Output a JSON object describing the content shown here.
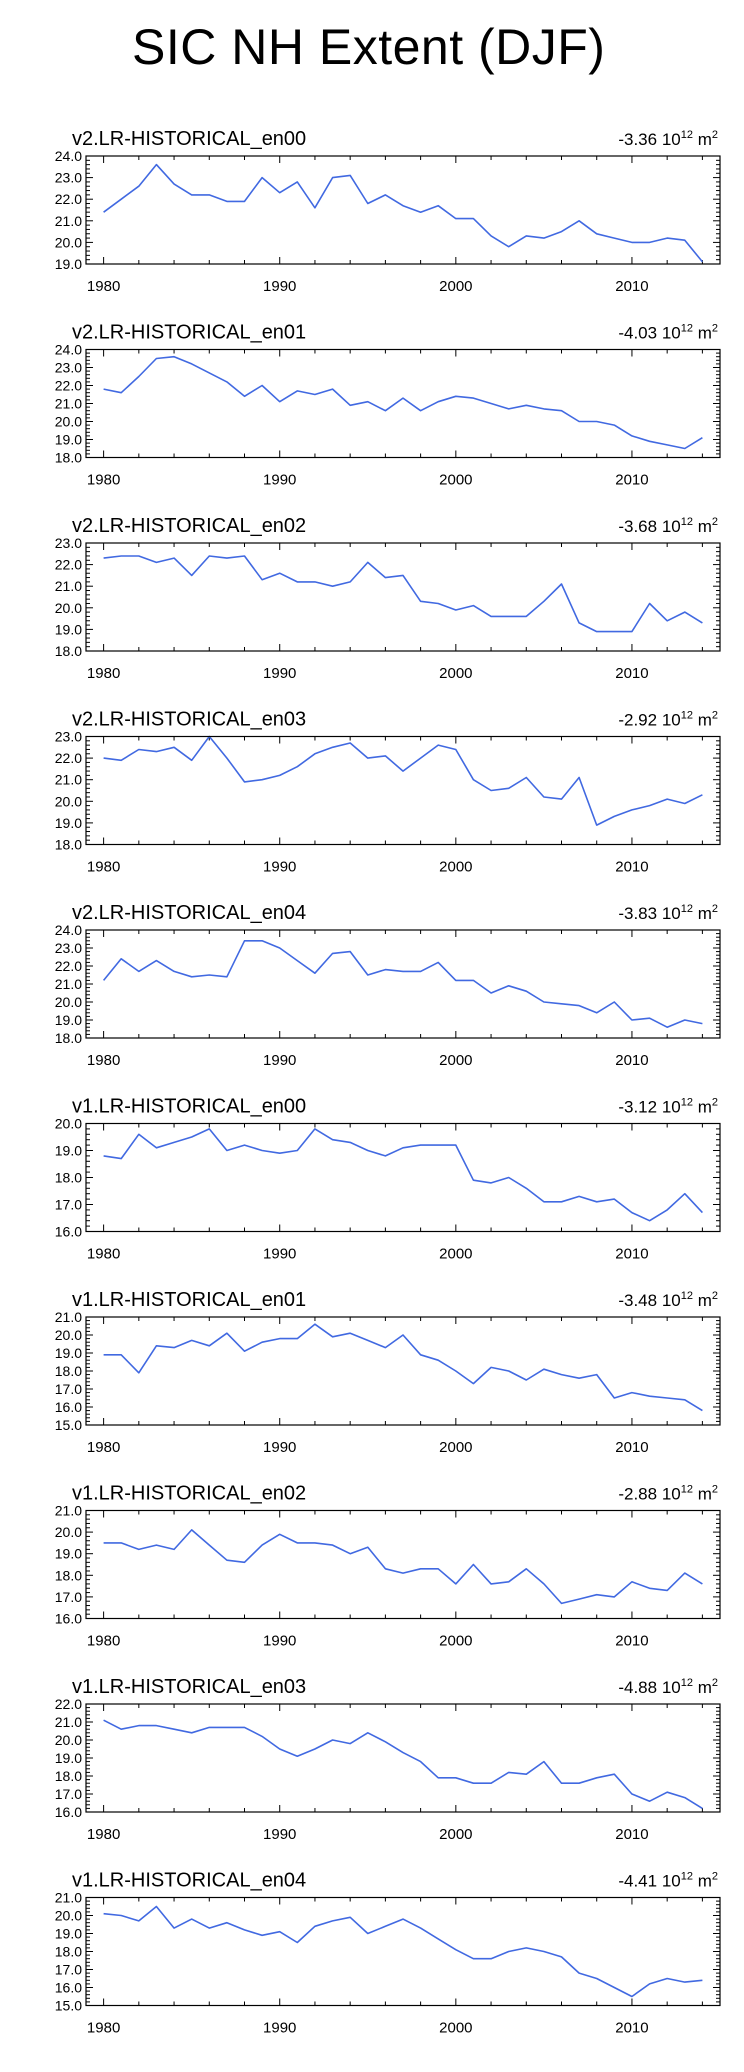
{
  "figure": {
    "title": "SIC NH Extent (DJF)"
  },
  "chart_data": [
    {
      "type": "line",
      "title": "v2.LR-HISTORICAL_en00",
      "trend": "-3.36",
      "trend_unit_base": "10",
      "trend_unit_exp": "12",
      "trend_unit": "m",
      "trend_unit_exp2": "2",
      "ylim": [
        19.0,
        24.0
      ],
      "yticks": [
        "24.0",
        "23.0",
        "22.0",
        "21.0",
        "20.0",
        "19.0"
      ],
      "xlim": [
        1979,
        2015
      ],
      "xticks": [
        "1980",
        "1990",
        "2000",
        "2010"
      ],
      "color": "#4169e1",
      "x": [
        1980,
        1981,
        1982,
        1983,
        1984,
        1985,
        1986,
        1987,
        1988,
        1989,
        1990,
        1991,
        1992,
        1993,
        1994,
        1995,
        1996,
        1997,
        1998,
        1999,
        2000,
        2001,
        2002,
        2003,
        2004,
        2005,
        2006,
        2007,
        2008,
        2009,
        2010,
        2011,
        2012,
        2013,
        2014
      ],
      "values": [
        21.4,
        22.0,
        22.6,
        23.6,
        22.7,
        22.2,
        22.2,
        21.9,
        21.9,
        23.0,
        22.3,
        22.8,
        21.6,
        23.0,
        23.1,
        21.8,
        22.2,
        21.7,
        21.4,
        21.7,
        21.1,
        21.1,
        20.3,
        19.8,
        20.3,
        20.2,
        20.5,
        21.0,
        20.4,
        20.2,
        20.0,
        20.0,
        20.2,
        20.1,
        19.1
      ]
    },
    {
      "type": "line",
      "title": "v2.LR-HISTORICAL_en01",
      "trend": "-4.03",
      "trend_unit_base": "10",
      "trend_unit_exp": "12",
      "trend_unit": "m",
      "trend_unit_exp2": "2",
      "ylim": [
        18.0,
        24.0
      ],
      "yticks": [
        "24.0",
        "23.0",
        "22.0",
        "21.0",
        "20.0",
        "19.0",
        "18.0"
      ],
      "xlim": [
        1979,
        2015
      ],
      "xticks": [
        "1980",
        "1990",
        "2000",
        "2010"
      ],
      "color": "#4169e1",
      "x": [
        1980,
        1981,
        1982,
        1983,
        1984,
        1985,
        1986,
        1987,
        1988,
        1989,
        1990,
        1991,
        1992,
        1993,
        1994,
        1995,
        1996,
        1997,
        1998,
        1999,
        2000,
        2001,
        2002,
        2003,
        2004,
        2005,
        2006,
        2007,
        2008,
        2009,
        2010,
        2011,
        2012,
        2013,
        2014
      ],
      "values": [
        21.8,
        21.6,
        22.5,
        23.5,
        23.6,
        23.2,
        22.7,
        22.2,
        21.4,
        22.0,
        21.1,
        21.7,
        21.5,
        21.8,
        20.9,
        21.1,
        20.6,
        21.3,
        20.6,
        21.1,
        21.4,
        21.3,
        21.0,
        20.7,
        20.9,
        20.7,
        20.6,
        20.0,
        20.0,
        19.8,
        19.2,
        18.9,
        18.7,
        18.5,
        19.1
      ]
    },
    {
      "type": "line",
      "title": "v2.LR-HISTORICAL_en02",
      "trend": "-3.68",
      "trend_unit_base": "10",
      "trend_unit_exp": "12",
      "trend_unit": "m",
      "trend_unit_exp2": "2",
      "ylim": [
        18.0,
        23.0
      ],
      "yticks": [
        "23.0",
        "22.0",
        "21.0",
        "20.0",
        "19.0",
        "18.0"
      ],
      "xlim": [
        1979,
        2015
      ],
      "xticks": [
        "1980",
        "1990",
        "2000",
        "2010"
      ],
      "color": "#4169e1",
      "x": [
        1980,
        1981,
        1982,
        1983,
        1984,
        1985,
        1986,
        1987,
        1988,
        1989,
        1990,
        1991,
        1992,
        1993,
        1994,
        1995,
        1996,
        1997,
        1998,
        1999,
        2000,
        2001,
        2002,
        2003,
        2004,
        2005,
        2006,
        2007,
        2008,
        2009,
        2010,
        2011,
        2012,
        2013,
        2014
      ],
      "values": [
        22.3,
        22.4,
        22.4,
        22.1,
        22.3,
        21.5,
        22.4,
        22.3,
        22.4,
        21.3,
        21.6,
        21.2,
        21.2,
        21.0,
        21.2,
        22.1,
        21.4,
        21.5,
        20.3,
        20.2,
        19.9,
        20.1,
        19.6,
        19.6,
        19.6,
        20.3,
        21.1,
        19.3,
        18.9,
        18.9,
        18.9,
        20.2,
        19.4,
        19.8,
        19.3
      ]
    },
    {
      "type": "line",
      "title": "v2.LR-HISTORICAL_en03",
      "trend": "-2.92",
      "trend_unit_base": "10",
      "trend_unit_exp": "12",
      "trend_unit": "m",
      "trend_unit_exp2": "2",
      "ylim": [
        18.0,
        23.0
      ],
      "yticks": [
        "23.0",
        "22.0",
        "21.0",
        "20.0",
        "19.0",
        "18.0"
      ],
      "xlim": [
        1979,
        2015
      ],
      "xticks": [
        "1980",
        "1990",
        "2000",
        "2010"
      ],
      "color": "#4169e1",
      "x": [
        1980,
        1981,
        1982,
        1983,
        1984,
        1985,
        1986,
        1987,
        1988,
        1989,
        1990,
        1991,
        1992,
        1993,
        1994,
        1995,
        1996,
        1997,
        1998,
        1999,
        2000,
        2001,
        2002,
        2003,
        2004,
        2005,
        2006,
        2007,
        2008,
        2009,
        2010,
        2011,
        2012,
        2013,
        2014
      ],
      "values": [
        22.0,
        21.9,
        22.4,
        22.3,
        22.5,
        21.9,
        23.0,
        22.0,
        20.9,
        21.0,
        21.2,
        21.6,
        22.2,
        22.5,
        22.7,
        22.0,
        22.1,
        21.4,
        22.0,
        22.6,
        22.4,
        21.0,
        20.5,
        20.6,
        21.1,
        20.2,
        20.1,
        21.1,
        18.9,
        19.3,
        19.6,
        19.8,
        20.1,
        19.9,
        20.3
      ]
    },
    {
      "type": "line",
      "title": "v2.LR-HISTORICAL_en04",
      "trend": "-3.83",
      "trend_unit_base": "10",
      "trend_unit_exp": "12",
      "trend_unit": "m",
      "trend_unit_exp2": "2",
      "ylim": [
        18.0,
        24.0
      ],
      "yticks": [
        "24.0",
        "23.0",
        "22.0",
        "21.0",
        "20.0",
        "19.0",
        "18.0"
      ],
      "xlim": [
        1979,
        2015
      ],
      "xticks": [
        "1980",
        "1990",
        "2000",
        "2010"
      ],
      "color": "#4169e1",
      "x": [
        1980,
        1981,
        1982,
        1983,
        1984,
        1985,
        1986,
        1987,
        1988,
        1989,
        1990,
        1991,
        1992,
        1993,
        1994,
        1995,
        1996,
        1997,
        1998,
        1999,
        2000,
        2001,
        2002,
        2003,
        2004,
        2005,
        2006,
        2007,
        2008,
        2009,
        2010,
        2011,
        2012,
        2013,
        2014
      ],
      "values": [
        21.2,
        22.4,
        21.7,
        22.3,
        21.7,
        21.4,
        21.5,
        21.4,
        23.4,
        23.4,
        23.0,
        22.3,
        21.6,
        22.7,
        22.8,
        21.5,
        21.8,
        21.7,
        21.7,
        22.2,
        21.2,
        21.2,
        20.5,
        20.9,
        20.6,
        20.0,
        19.9,
        19.8,
        19.4,
        20.0,
        19.0,
        19.1,
        18.6,
        19.0,
        18.8
      ]
    },
    {
      "type": "line",
      "title": "v1.LR-HISTORICAL_en00",
      "trend": "-3.12",
      "trend_unit_base": "10",
      "trend_unit_exp": "12",
      "trend_unit": "m",
      "trend_unit_exp2": "2",
      "ylim": [
        16.0,
        20.0
      ],
      "yticks": [
        "20.0",
        "19.0",
        "18.0",
        "17.0",
        "16.0"
      ],
      "xlim": [
        1979,
        2015
      ],
      "xticks": [
        "1980",
        "1990",
        "2000",
        "2010"
      ],
      "color": "#4169e1",
      "x": [
        1980,
        1981,
        1982,
        1983,
        1984,
        1985,
        1986,
        1987,
        1988,
        1989,
        1990,
        1991,
        1992,
        1993,
        1994,
        1995,
        1996,
        1997,
        1998,
        1999,
        2000,
        2001,
        2002,
        2003,
        2004,
        2005,
        2006,
        2007,
        2008,
        2009,
        2010,
        2011,
        2012,
        2013,
        2014
      ],
      "values": [
        18.8,
        18.7,
        19.6,
        19.1,
        19.3,
        19.5,
        19.8,
        19.0,
        19.2,
        19.0,
        18.9,
        19.0,
        19.8,
        19.4,
        19.3,
        19.0,
        18.8,
        19.1,
        19.2,
        19.2,
        19.2,
        17.9,
        17.8,
        18.0,
        17.6,
        17.1,
        17.1,
        17.3,
        17.1,
        17.2,
        16.7,
        16.4,
        16.8,
        17.4,
        16.7
      ]
    },
    {
      "type": "line",
      "title": "v1.LR-HISTORICAL_en01",
      "trend": "-3.48",
      "trend_unit_base": "10",
      "trend_unit_exp": "12",
      "trend_unit": "m",
      "trend_unit_exp2": "2",
      "ylim": [
        15.0,
        21.0
      ],
      "yticks": [
        "21.0",
        "20.0",
        "19.0",
        "18.0",
        "17.0",
        "16.0",
        "15.0"
      ],
      "xlim": [
        1979,
        2015
      ],
      "xticks": [
        "1980",
        "1990",
        "2000",
        "2010"
      ],
      "color": "#4169e1",
      "x": [
        1980,
        1981,
        1982,
        1983,
        1984,
        1985,
        1986,
        1987,
        1988,
        1989,
        1990,
        1991,
        1992,
        1993,
        1994,
        1995,
        1996,
        1997,
        1998,
        1999,
        2000,
        2001,
        2002,
        2003,
        2004,
        2005,
        2006,
        2007,
        2008,
        2009,
        2010,
        2011,
        2012,
        2013,
        2014
      ],
      "values": [
        18.9,
        18.9,
        17.9,
        19.4,
        19.3,
        19.7,
        19.4,
        20.1,
        19.1,
        19.6,
        19.8,
        19.8,
        20.6,
        19.9,
        20.1,
        19.7,
        19.3,
        20.0,
        18.9,
        18.6,
        18.0,
        17.3,
        18.2,
        18.0,
        17.5,
        18.1,
        17.8,
        17.6,
        17.8,
        16.5,
        16.8,
        16.6,
        16.5,
        16.4,
        15.8
      ]
    },
    {
      "type": "line",
      "title": "v1.LR-HISTORICAL_en02",
      "trend": "-2.88",
      "trend_unit_base": "10",
      "trend_unit_exp": "12",
      "trend_unit": "m",
      "trend_unit_exp2": "2",
      "ylim": [
        16.0,
        21.0
      ],
      "yticks": [
        "21.0",
        "20.0",
        "19.0",
        "18.0",
        "17.0",
        "16.0"
      ],
      "xlim": [
        1979,
        2015
      ],
      "xticks": [
        "1980",
        "1990",
        "2000",
        "2010"
      ],
      "color": "#4169e1",
      "x": [
        1980,
        1981,
        1982,
        1983,
        1984,
        1985,
        1986,
        1987,
        1988,
        1989,
        1990,
        1991,
        1992,
        1993,
        1994,
        1995,
        1996,
        1997,
        1998,
        1999,
        2000,
        2001,
        2002,
        2003,
        2004,
        2005,
        2006,
        2007,
        2008,
        2009,
        2010,
        2011,
        2012,
        2013,
        2014
      ],
      "values": [
        19.5,
        19.5,
        19.2,
        19.4,
        19.2,
        20.1,
        19.4,
        18.7,
        18.6,
        19.4,
        19.9,
        19.5,
        19.5,
        19.4,
        19.0,
        19.3,
        18.3,
        18.1,
        18.3,
        18.3,
        17.6,
        18.5,
        17.6,
        17.7,
        18.3,
        17.6,
        16.7,
        16.9,
        17.1,
        17.0,
        17.7,
        17.4,
        17.3,
        18.1,
        17.6
      ]
    },
    {
      "type": "line",
      "title": "v1.LR-HISTORICAL_en03",
      "trend": "-4.88",
      "trend_unit_base": "10",
      "trend_unit_exp": "12",
      "trend_unit": "m",
      "trend_unit_exp2": "2",
      "ylim": [
        16.0,
        22.0
      ],
      "yticks": [
        "22.0",
        "21.0",
        "20.0",
        "19.0",
        "18.0",
        "17.0",
        "16.0"
      ],
      "xlim": [
        1979,
        2015
      ],
      "xticks": [
        "1980",
        "1990",
        "2000",
        "2010"
      ],
      "color": "#4169e1",
      "x": [
        1980,
        1981,
        1982,
        1983,
        1984,
        1985,
        1986,
        1987,
        1988,
        1989,
        1990,
        1991,
        1992,
        1993,
        1994,
        1995,
        1996,
        1997,
        1998,
        1999,
        2000,
        2001,
        2002,
        2003,
        2004,
        2005,
        2006,
        2007,
        2008,
        2009,
        2010,
        2011,
        2012,
        2013,
        2014
      ],
      "values": [
        21.1,
        20.6,
        20.8,
        20.8,
        20.6,
        20.4,
        20.7,
        20.7,
        20.7,
        20.2,
        19.5,
        19.1,
        19.5,
        20.0,
        19.8,
        20.4,
        19.9,
        19.3,
        18.8,
        17.9,
        17.9,
        17.6,
        17.6,
        18.2,
        18.1,
        18.8,
        17.6,
        17.6,
        17.9,
        18.1,
        17.0,
        16.6,
        17.1,
        16.8,
        16.2
      ]
    },
    {
      "type": "line",
      "title": "v1.LR-HISTORICAL_en04",
      "trend": "-4.41",
      "trend_unit_base": "10",
      "trend_unit_exp": "12",
      "trend_unit": "m",
      "trend_unit_exp2": "2",
      "ylim": [
        15.0,
        21.0
      ],
      "yticks": [
        "21.0",
        "20.0",
        "19.0",
        "18.0",
        "17.0",
        "16.0",
        "15.0"
      ],
      "xlim": [
        1979,
        2015
      ],
      "xticks": [
        "1980",
        "1990",
        "2000",
        "2010"
      ],
      "color": "#4169e1",
      "x": [
        1980,
        1981,
        1982,
        1983,
        1984,
        1985,
        1986,
        1987,
        1988,
        1989,
        1990,
        1991,
        1992,
        1993,
        1994,
        1995,
        1996,
        1997,
        1998,
        1999,
        2000,
        2001,
        2002,
        2003,
        2004,
        2005,
        2006,
        2007,
        2008,
        2009,
        2010,
        2011,
        2012,
        2013,
        2014
      ],
      "values": [
        20.1,
        20.0,
        19.7,
        20.5,
        19.3,
        19.8,
        19.3,
        19.6,
        19.2,
        18.9,
        19.1,
        18.5,
        19.4,
        19.7,
        19.9,
        19.0,
        19.4,
        19.8,
        19.3,
        18.7,
        18.1,
        17.6,
        17.6,
        18.0,
        18.2,
        18.0,
        17.7,
        16.8,
        16.5,
        16.0,
        15.5,
        16.2,
        16.5,
        16.3,
        16.4
      ]
    }
  ]
}
